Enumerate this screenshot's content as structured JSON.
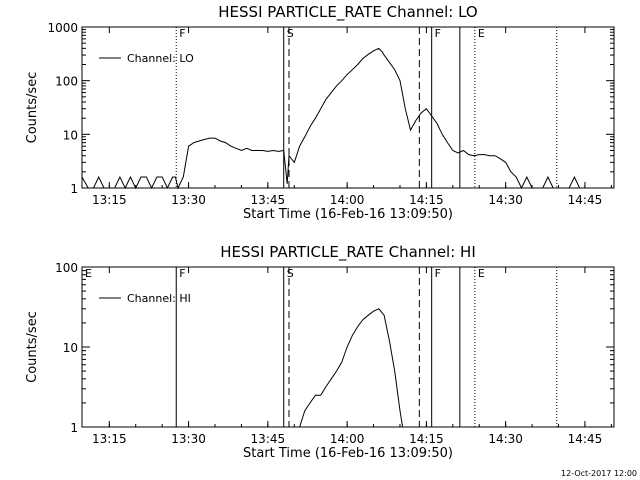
{
  "footer_timestamp": "12-Oct-2017 12:00",
  "chart_data": [
    {
      "type": "line",
      "title": "HESSI PARTICLE_RATE Channel: LO",
      "xlabel": "Start Time (16-Feb-16 13:09:50)",
      "ylabel": "Counts/sec",
      "yscale": "log",
      "ylim": [
        1,
        1000
      ],
      "xlim": [
        "13:09:50",
        "14:50:30"
      ],
      "x_ticks": [
        "13:15",
        "13:30",
        "13:45",
        "14:00",
        "14:15",
        "14:30",
        "14:45"
      ],
      "y_ticks": [
        "1",
        "10",
        "100",
        "1000"
      ],
      "legend": "top-left",
      "grid": false,
      "series": [
        {
          "name": "Channel: LO",
          "x": [
            "13:09:50",
            "13:11:00",
            "13:12:00",
            "13:13:00",
            "13:14:00",
            "13:15:00",
            "13:16:00",
            "13:17:00",
            "13:18:00",
            "13:19:00",
            "13:20:00",
            "13:21:00",
            "13:22:00",
            "13:23:00",
            "13:24:00",
            "13:25:00",
            "13:26:00",
            "13:27:00",
            "13:27:30",
            "13:28:00",
            "13:29:00",
            "13:30:00",
            "13:31:00",
            "13:32:00",
            "13:33:00",
            "13:34:00",
            "13:35:00",
            "13:36:00",
            "13:37:00",
            "13:38:00",
            "13:39:00",
            "13:40:00",
            "13:41:00",
            "13:42:00",
            "13:43:00",
            "13:44:00",
            "13:45:00",
            "13:46:00",
            "13:47:00",
            "13:48:00",
            "13:48:40",
            "13:49:00",
            "13:50:00",
            "13:51:00",
            "13:52:00",
            "13:53:00",
            "13:54:00",
            "13:55:00",
            "13:56:00",
            "13:57:00",
            "13:58:00",
            "13:59:00",
            "14:00:00",
            "14:01:00",
            "14:02:00",
            "14:03:00",
            "14:04:00",
            "14:05:00",
            "14:06:00",
            "14:06:40",
            "14:07:00",
            "14:08:00",
            "14:09:00",
            "14:10:00",
            "14:11:00",
            "14:12:00",
            "14:13:00",
            "14:14:00",
            "14:15:00",
            "14:16:00",
            "14:17:00",
            "14:18:00",
            "14:19:00",
            "14:20:00",
            "14:21:00",
            "14:22:00",
            "14:23:00",
            "14:24:00",
            "14:25:00",
            "14:26:00",
            "14:27:00",
            "14:28:00",
            "14:29:00",
            "14:30:00",
            "14:31:00",
            "14:32:00",
            "14:33:00",
            "14:34:00",
            "14:35:00",
            "14:36:00",
            "14:37:00",
            "14:38:00",
            "14:39:00",
            "14:40:00",
            "14:41:00",
            "14:42:00",
            "14:43:00",
            "14:44:00",
            "14:45:00",
            "14:46:00",
            "14:47:00",
            "14:48:00",
            "14:49:00",
            "14:50:00"
          ],
          "values": [
            1.6,
            1,
            1,
            1.6,
            1,
            1,
            1,
            1.6,
            1,
            1.6,
            1,
            1.6,
            1.6,
            1,
            1.6,
            1.6,
            1,
            1.6,
            1.6,
            1,
            1.6,
            6,
            7,
            7.5,
            8,
            8.5,
            8.5,
            7.5,
            7,
            6,
            5.5,
            5,
            5.5,
            5,
            5,
            5,
            4.8,
            5,
            4.8,
            5,
            1.2,
            4,
            3,
            6,
            9,
            14,
            20,
            30,
            45,
            60,
            80,
            100,
            130,
            160,
            200,
            260,
            310,
            360,
            400,
            340,
            300,
            220,
            160,
            100,
            30,
            12,
            18,
            25,
            30,
            22,
            16,
            10,
            7,
            5,
            4.5,
            5,
            4.2,
            4,
            4.2,
            4.2,
            4,
            4,
            3.5,
            3,
            2,
            1.6,
            1,
            1.6,
            1,
            1,
            1,
            1.6,
            1,
            1,
            1,
            1,
            1.6,
            1,
            1,
            1,
            1,
            1,
            1,
            1
          ]
        }
      ],
      "markers": [
        {
          "label": "F",
          "x": "13:27:40",
          "style": "dotted"
        },
        {
          "label": "S",
          "x": "13:48:00",
          "style": "solid"
        },
        {
          "label": "",
          "x": "13:49:00",
          "style": "dashed"
        },
        {
          "label": "",
          "x": "14:13:40",
          "style": "dashed"
        },
        {
          "label": "F",
          "x": "14:16:00",
          "style": "solid"
        },
        {
          "label": "",
          "x": "14:21:20",
          "style": "solid"
        },
        {
          "label": "E",
          "x": "14:24:10",
          "style": "dotted"
        },
        {
          "label": "",
          "x": "14:39:40",
          "style": "dotted"
        }
      ]
    },
    {
      "type": "line",
      "title": "HESSI PARTICLE_RATE Channel: HI",
      "xlabel": "Start Time (16-Feb-16 13:09:50)",
      "ylabel": "Counts/sec",
      "yscale": "log",
      "ylim": [
        1,
        100
      ],
      "xlim": [
        "13:09:50",
        "14:50:30"
      ],
      "x_ticks": [
        "13:15",
        "13:30",
        "13:45",
        "14:00",
        "14:15",
        "14:30",
        "14:45"
      ],
      "y_ticks": [
        "1",
        "10",
        "100"
      ],
      "legend": "top-left",
      "grid": false,
      "series": [
        {
          "name": "Channel: HI",
          "x": [
            "13:51:00",
            "13:52:00",
            "13:53:00",
            "13:54:00",
            "13:55:00",
            "13:56:00",
            "13:57:00",
            "13:58:00",
            "13:59:00",
            "14:00:00",
            "14:01:00",
            "14:02:00",
            "14:03:00",
            "14:04:00",
            "14:05:00",
            "14:06:00",
            "14:07:00",
            "14:08:00",
            "14:09:00",
            "14:10:00",
            "14:10:30"
          ],
          "values": [
            1,
            1.6,
            2,
            2.5,
            2.5,
            3.2,
            4,
            5,
            6.5,
            10,
            14,
            18,
            22,
            25,
            28,
            30,
            25,
            12,
            5,
            1.6,
            1
          ]
        }
      ],
      "markers": [
        {
          "label": "E",
          "x": "13:09:50",
          "style": "none"
        },
        {
          "label": "F",
          "x": "13:27:40",
          "style": "solid"
        },
        {
          "label": "S",
          "x": "13:48:00",
          "style": "solid"
        },
        {
          "label": "",
          "x": "13:49:00",
          "style": "dashed"
        },
        {
          "label": "",
          "x": "14:13:40",
          "style": "dashed"
        },
        {
          "label": "F",
          "x": "14:16:00",
          "style": "solid"
        },
        {
          "label": "",
          "x": "14:21:20",
          "style": "solid"
        },
        {
          "label": "E",
          "x": "14:24:10",
          "style": "dotted"
        },
        {
          "label": "",
          "x": "14:39:40",
          "style": "dotted"
        }
      ]
    }
  ]
}
